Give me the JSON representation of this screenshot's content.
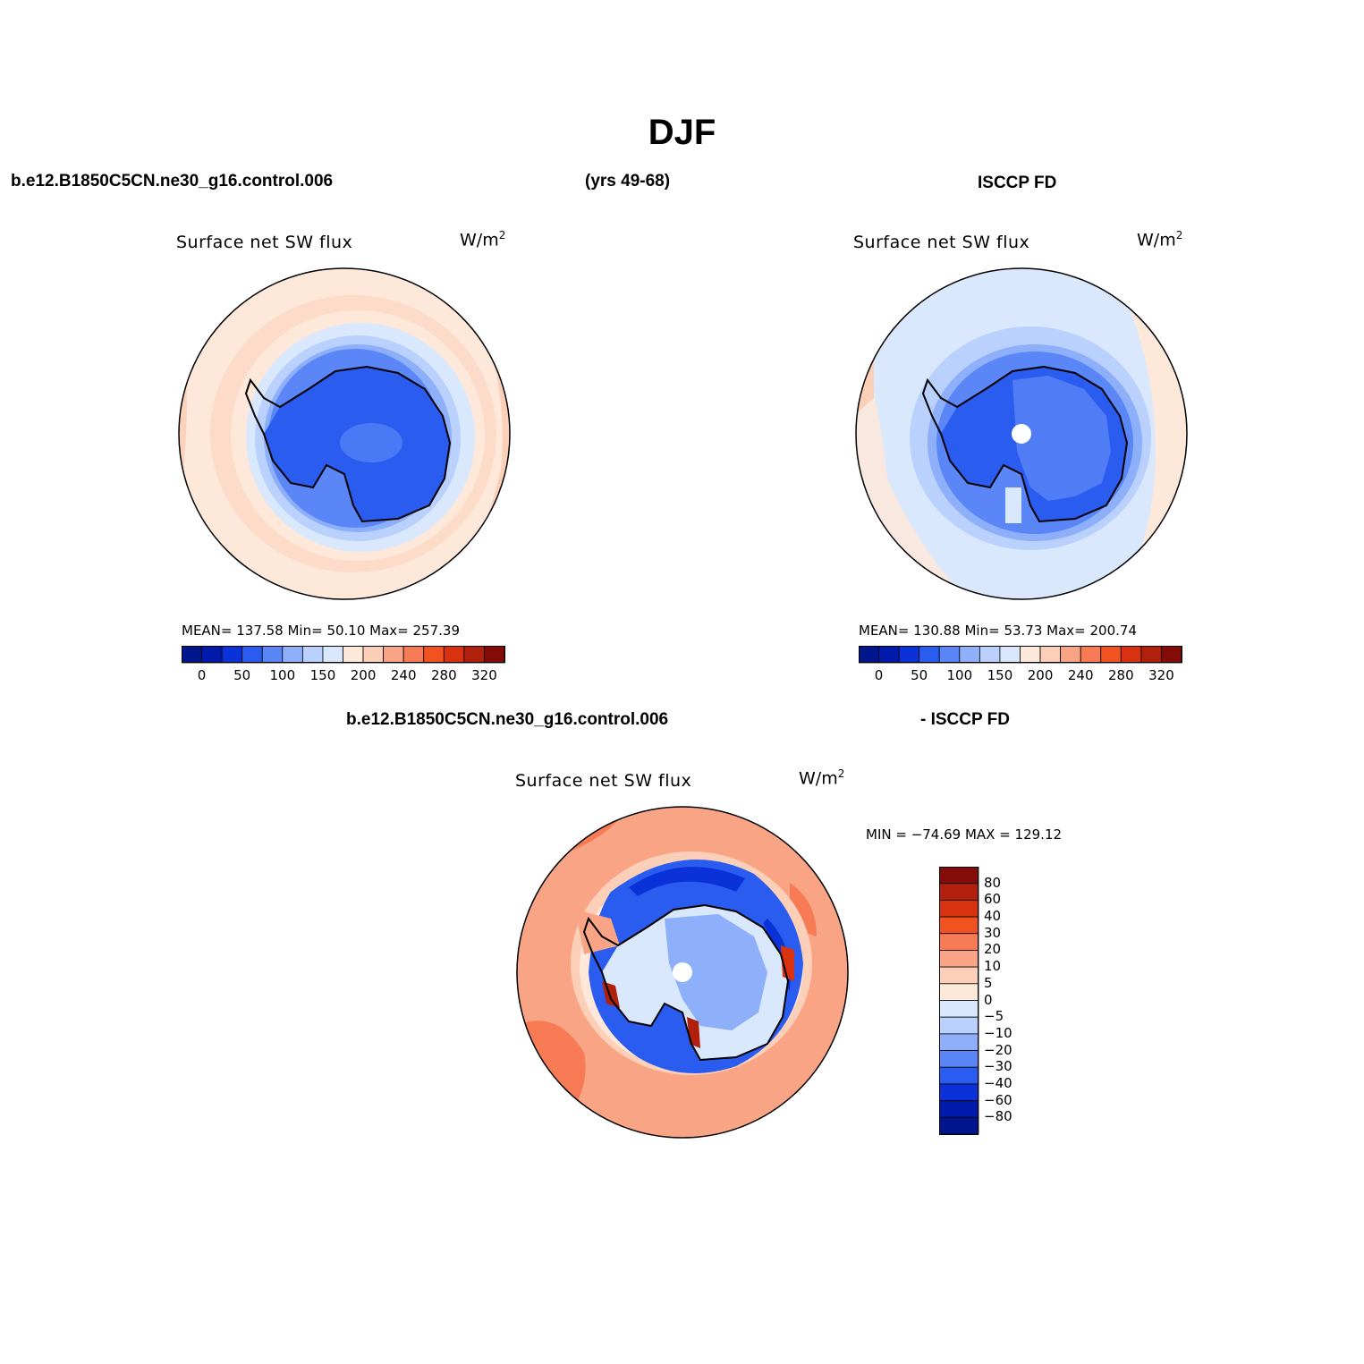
{
  "figure": {
    "title": "DJF",
    "top_left_header": "b.e12.B1850C5CN.ne30_g16.control.006",
    "top_center_header": "(yrs 49-68)",
    "top_right_header": "ISCCP FD",
    "bottom_header_left": "b.e12.B1850C5CN.ne30_g16.control.006",
    "bottom_header_right": "- ISCCP FD"
  },
  "panels": [
    {
      "id": "model",
      "title": "Surface net SW flux",
      "units_base": "W/m",
      "units_exp": "2",
      "stats": "MEAN= 137.58   Min=   50.10   Max= 257.39",
      "colorbar_ticks": [
        "0",
        "50",
        "100",
        "150",
        "200",
        "240",
        "280",
        "320"
      ],
      "colors": [
        "#00168c",
        "#001aac",
        "#0a32d8",
        "#2a5cf0",
        "#5a86f7",
        "#8eb0fa",
        "#b9d1fc",
        "#d9e8fd",
        "#fde8d9",
        "#fccfb8",
        "#f9a585",
        "#f77b54",
        "#f2521f",
        "#d83211",
        "#b0200c",
        "#830c08"
      ]
    },
    {
      "id": "obs",
      "title": "Surface net SW flux",
      "units_base": "W/m",
      "units_exp": "2",
      "stats": "MEAN= 130.88   Min=   53.73   Max= 200.74",
      "colorbar_ticks": [
        "0",
        "50",
        "100",
        "150",
        "200",
        "240",
        "280",
        "320"
      ],
      "colors": [
        "#00168c",
        "#001aac",
        "#0a32d8",
        "#2a5cf0",
        "#5a86f7",
        "#8eb0fa",
        "#b9d1fc",
        "#d9e8fd",
        "#fde8d9",
        "#fccfb8",
        "#f9a585",
        "#f77b54",
        "#f2521f",
        "#d83211",
        "#b0200c",
        "#830c08"
      ]
    },
    {
      "id": "diff",
      "title": "Surface net SW flux",
      "units_base": "W/m",
      "units_exp": "2",
      "stats": "MIN = −74.69  MAX = 129.12",
      "colorbar_ticks": [
        "80",
        "60",
        "40",
        "30",
        "20",
        "10",
        "5",
        "0",
        "−5",
        "−10",
        "−20",
        "−30",
        "−40",
        "−60",
        "−80"
      ],
      "colors": [
        "#830c08",
        "#b0200c",
        "#d83211",
        "#f2521f",
        "#f77b54",
        "#f9a585",
        "#fccfb8",
        "#fde8d9",
        "#d9e8fd",
        "#b9d1fc",
        "#8eb0fa",
        "#5a86f7",
        "#2a5cf0",
        "#0a32d8",
        "#001aac",
        "#00168c"
      ]
    }
  ]
}
